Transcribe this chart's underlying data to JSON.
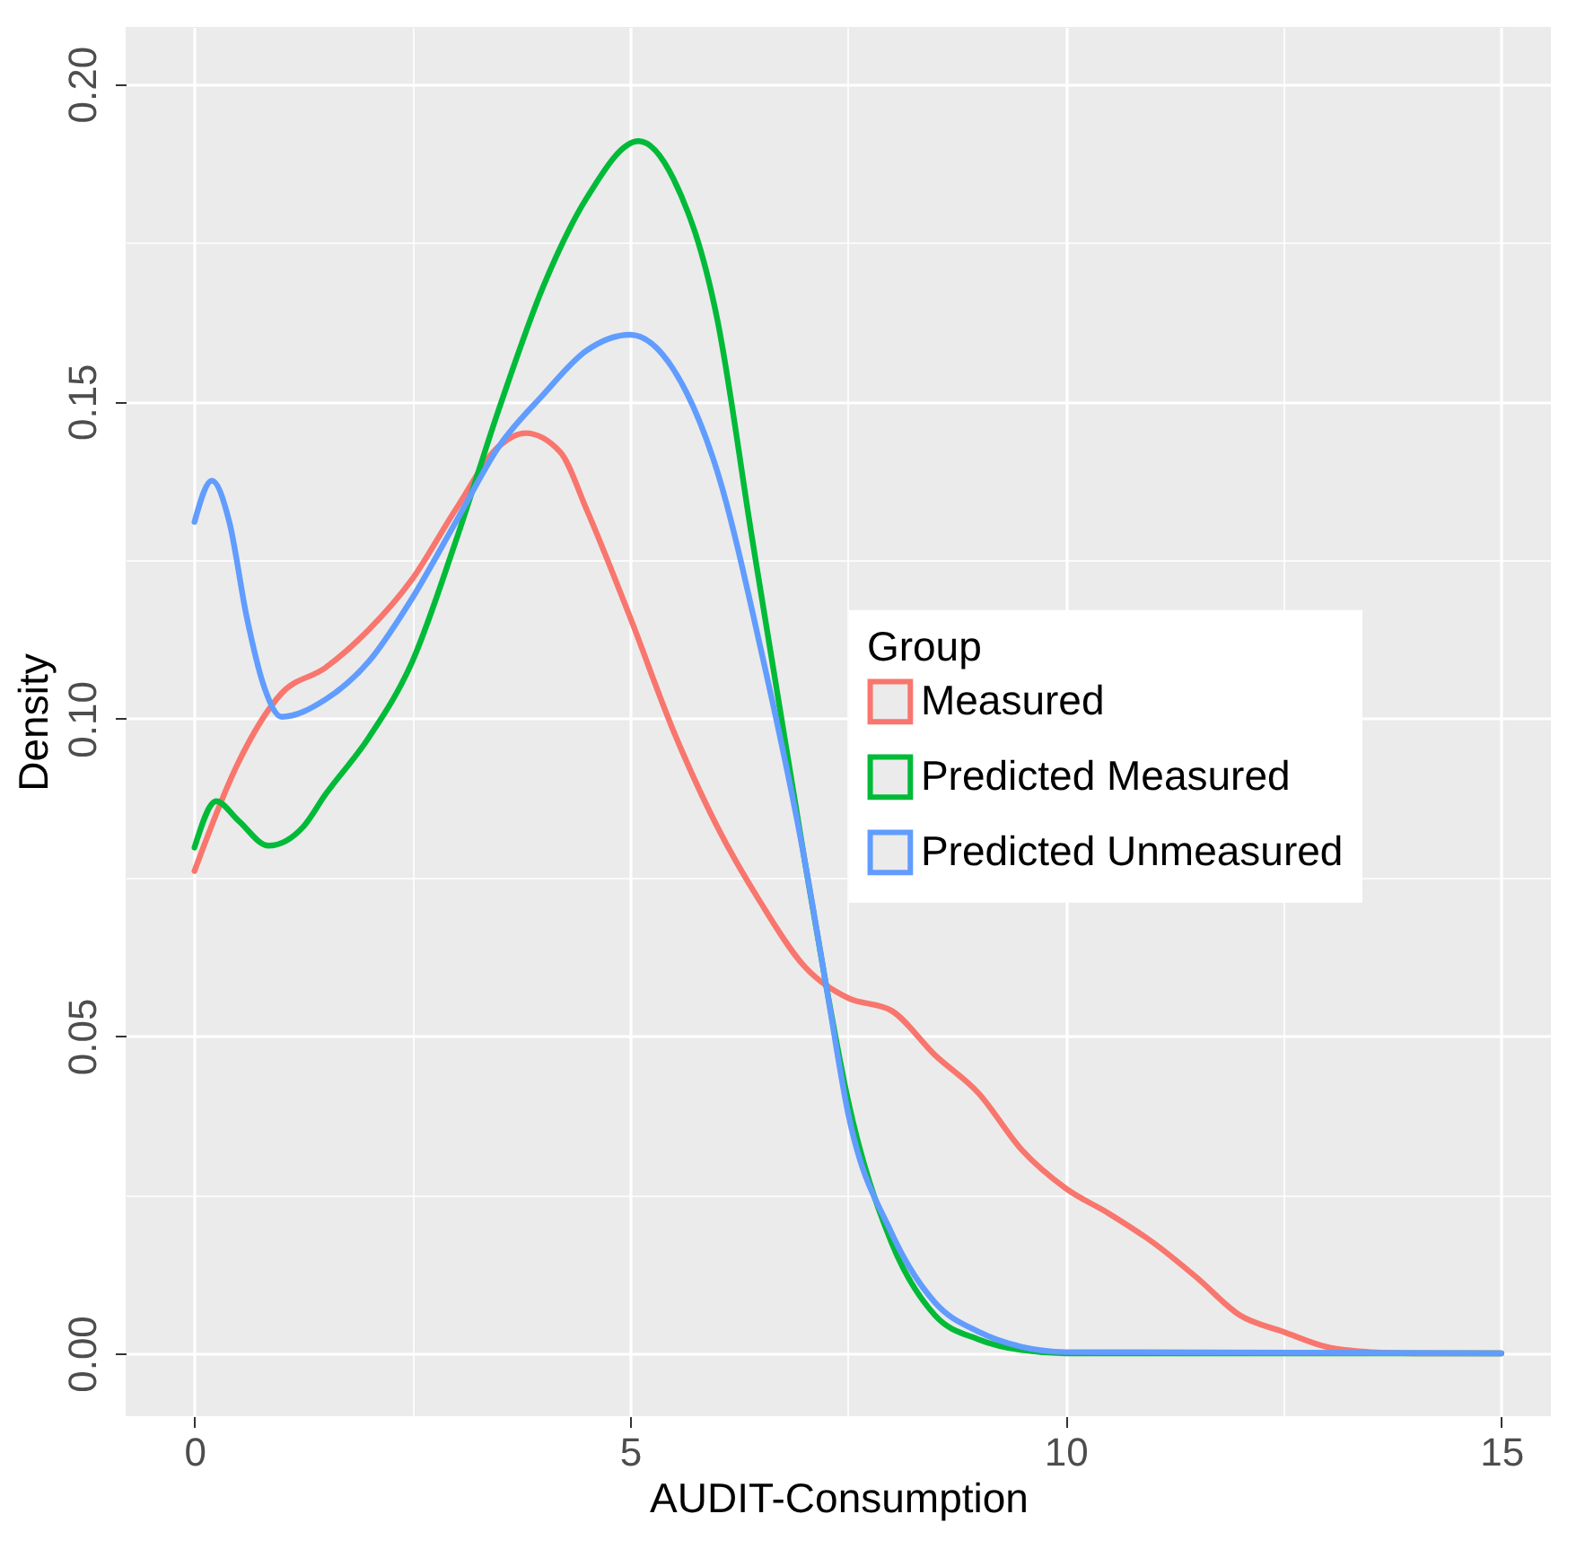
{
  "chart_data": {
    "type": "line",
    "xlabel": "AUDIT-Consumption",
    "ylabel": "Density",
    "legend_title": "Group",
    "legend": "right",
    "grid": true,
    "xlim": [
      -0.79,
      15.57
    ],
    "ylim": [
      -0.0099,
      0.209
    ],
    "xticks": [
      0,
      {
        "value": 2.5,
        "label": null
      },
      5,
      {
        "value": 7.5,
        "label": null
      },
      10,
      {
        "value": 12.5,
        "label": null
      },
      15
    ],
    "yticks": [
      {
        "value": 0,
        "label": "0.00"
      },
      {
        "value": 0.025,
        "label": null
      },
      {
        "value": 0.05,
        "label": "0.05"
      },
      {
        "value": 0.075,
        "label": null
      },
      {
        "value": 0.1,
        "label": "0.10"
      },
      {
        "value": 0.125,
        "label": null
      },
      {
        "value": 0.15,
        "label": "0.15"
      },
      {
        "value": 0.175,
        "label": null
      },
      {
        "value": 0.2,
        "label": "0.20"
      }
    ],
    "series": [
      {
        "name": "Measured",
        "color": "#f8766d",
        "x": [
          0,
          0.5,
          1,
          1.5,
          2,
          2.5,
          3,
          3.5,
          3.8,
          4.2,
          4.5,
          5,
          5.5,
          6,
          6.5,
          7,
          7.5,
          8,
          8.5,
          9,
          9.5,
          10,
          10.5,
          11,
          11.5,
          12,
          12.5,
          13,
          13.5,
          14,
          15
        ],
        "values": [
          0.076,
          0.093,
          0.104,
          0.108,
          0.114,
          0.122,
          0.133,
          0.143,
          0.145,
          0.142,
          0.133,
          0.116,
          0.098,
          0.083,
          0.071,
          0.061,
          0.056,
          0.054,
          0.047,
          0.041,
          0.032,
          0.026,
          0.022,
          0.0175,
          0.012,
          0.006,
          0.0034,
          0.001,
          0.0002,
          0,
          0
        ]
      },
      {
        "name": "Predicted Measured",
        "color": "#00ba38",
        "x": [
          0,
          0.25,
          0.5,
          0.85,
          1.25,
          1.5,
          2,
          2.5,
          3,
          3.5,
          4,
          4.5,
          5.1,
          5.5,
          6,
          6.4,
          7,
          7.25,
          7.5,
          8,
          8.5,
          9,
          9.5,
          10,
          15
        ],
        "values": [
          0.0797,
          0.087,
          0.084,
          0.08,
          0.083,
          0.088,
          0.097,
          0.109,
          0.128,
          0.149,
          0.168,
          0.182,
          0.191,
          0.185,
          0.163,
          0.1285,
          0.078,
          0.058,
          0.04,
          0.0175,
          0.006,
          0.0022,
          0.0005,
          0,
          0
        ]
      },
      {
        "name": "Predicted Unmeasured",
        "color": "#619cff",
        "x": [
          0,
          0.2,
          0.4,
          0.6,
          0.8,
          1,
          1.5,
          2,
          2.5,
          3,
          3.5,
          4,
          4.5,
          5,
          5.5,
          6,
          6.5,
          7,
          7.25,
          7.5,
          8,
          8.5,
          9,
          9.5,
          10,
          15
        ],
        "values": [
          0.131,
          0.1375,
          0.131,
          0.116,
          0.105,
          0.1003,
          0.103,
          0.109,
          0.119,
          0.131,
          0.143,
          0.151,
          0.158,
          0.1605,
          0.155,
          0.139,
          0.111,
          0.078,
          0.058,
          0.038,
          0.019,
          0.008,
          0.0034,
          0.001,
          0.0002,
          0
        ]
      }
    ]
  }
}
